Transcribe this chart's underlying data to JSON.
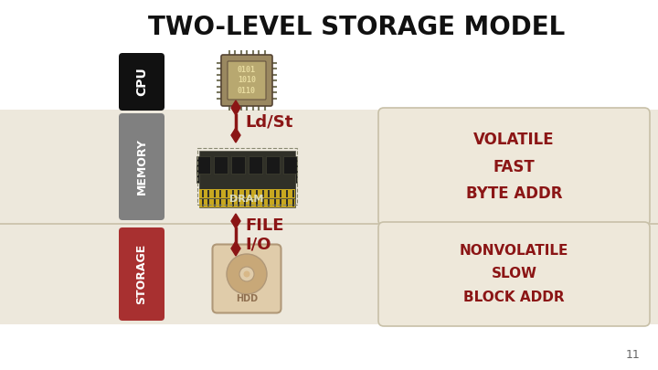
{
  "title": "TWO-LEVEL STORAGE MODEL",
  "title_fontsize": 20,
  "bg_color": "#ffffff",
  "memory_band_color": "#ede8dc",
  "storage_band_color": "#ede8dc",
  "cpu_label_bg": "#111111",
  "cpu_label_color": "#ffffff",
  "memory_label_bg": "#808080",
  "memory_label_color": "#ffffff",
  "storage_label_bg": "#a83030",
  "storage_label_color": "#ffffff",
  "arrow_color": "#8b1515",
  "text_color": "#8b1515",
  "info_box_bg": "#eee8da",
  "info_box_border": "#c8c0a8",
  "volatile_text": [
    "VOLATILE",
    "FAST",
    "BYTE ADDR"
  ],
  "nonvolatile_text": [
    "NONVOLATILE",
    "SLOW",
    "BLOCK ADDR"
  ],
  "ld_st_label": "Ld/St",
  "file_io_label": "FILE\nI/O",
  "dram_label": "DRAM",
  "hdd_label": "HDD",
  "page_number": "11",
  "cpu_chip_text": "0101\n1010\n0110",
  "chip_body_color": "#9a8860",
  "chip_inner_color": "#b8a870",
  "chip_pin_color": "#7a7860",
  "chip_text_color": "#e8dca0",
  "ram_body_color": "#2a2a28",
  "ram_pcb_color": "#383828",
  "ram_chip_color": "#181818",
  "ram_gold_color": "#c8a820",
  "ram_text_color": "#c8c8a0",
  "hdd_box_color": "#e0ccaa",
  "hdd_border_color": "#b09878",
  "hdd_platter_color": "#c8a878",
  "hdd_center_color": "#d8b888",
  "hdd_text_color": "#907050",
  "separator_color": "#c8c0a8"
}
